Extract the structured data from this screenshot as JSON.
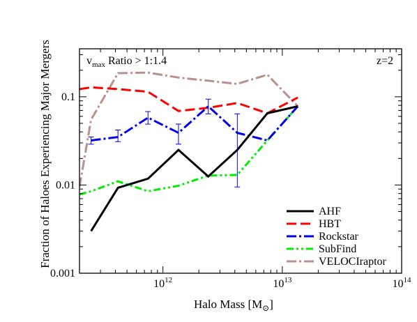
{
  "chart_data": {
    "type": "line",
    "xlabel": "Halo Mass [M",
    "xlabel_sub": "⊙",
    "xlabel_close": "]",
    "ylabel": "Fraction of Haloes Experiencing Major Mergers",
    "xscale": "log",
    "yscale": "log",
    "xlim": [
      200000000000.0,
      100000000000000.0
    ],
    "ylim": [
      0.001,
      0.35
    ],
    "x_ticks": [
      {
        "value": 1000000000000.0,
        "base": "10",
        "exp": "12"
      },
      {
        "value": 10000000000000.0,
        "base": "10",
        "exp": "13"
      },
      {
        "value": 100000000000000.0,
        "base": "10",
        "exp": "14"
      }
    ],
    "y_ticks": [
      {
        "value": 0.001,
        "label": "0.001"
      },
      {
        "value": 0.01,
        "label": "0.01"
      },
      {
        "value": 0.1,
        "label": "0.1"
      }
    ],
    "annotation_left": {
      "v": "v",
      "sub": "max",
      "text": " Ratio > 1:1.4"
    },
    "annotation_right": "z=2",
    "legend_position": "bottom-right",
    "series": [
      {
        "name": "AHF",
        "color": "#000000",
        "dash": "none",
        "width": 3,
        "x": [
          250000000000.0,
          420000000000.0,
          750000000000.0,
          1350000000000.0,
          2400000000000.0,
          4200000000000.0,
          7500000000000.0,
          13500000000000.0
        ],
        "y": [
          0.003,
          0.0093,
          0.0118,
          0.025,
          0.0125,
          0.025,
          0.065,
          0.078
        ]
      },
      {
        "name": "HBT",
        "color": "#ff0000",
        "dash": "14,6",
        "width": 3,
        "x": [
          200000000000.0,
          250000000000.0,
          420000000000.0,
          750000000000.0,
          1350000000000.0,
          2400000000000.0,
          4200000000000.0,
          7500000000000.0,
          13500000000000.0
        ],
        "y": [
          0.122,
          0.128,
          0.122,
          0.114,
          0.069,
          0.075,
          0.085,
          0.065,
          0.098
        ]
      },
      {
        "name": "Rockstar",
        "color": "#0000ee",
        "dash": "14,4,3,4",
        "width": 3,
        "x": [
          250000000000.0,
          420000000000.0,
          750000000000.0,
          1350000000000.0,
          2400000000000.0,
          4200000000000.0,
          7500000000000.0,
          13500000000000.0
        ],
        "y": [
          0.032,
          0.035,
          0.058,
          0.039,
          0.078,
          0.039,
          0.032,
          0.078
        ],
        "yerr_low": [
          0.029,
          0.031,
          0.049,
          0.029,
          0.064,
          0.0095,
          null,
          null
        ],
        "yerr_high": [
          0.035,
          0.042,
          0.068,
          0.049,
          0.094,
          0.064,
          null,
          null
        ]
      },
      {
        "name": "SubFind",
        "color": "#00ee00",
        "dash": "10,4,3,4,3,4",
        "width": 3,
        "x": [
          200000000000.0,
          250000000000.0,
          420000000000.0,
          750000000000.0,
          1350000000000.0,
          2400000000000.0,
          4200000000000.0,
          7500000000000.0,
          13500000000000.0
        ],
        "y": [
          0.0078,
          0.0085,
          0.011,
          0.0085,
          0.0098,
          0.0128,
          0.013,
          0.032,
          0.078
        ]
      },
      {
        "name": "VELOCIraptor",
        "color": "#bc8f8f",
        "dash": "14,4,3,4",
        "width": 3,
        "x": [
          200000000000.0,
          250000000000.0,
          420000000000.0,
          750000000000.0,
          1350000000000.0,
          2400000000000.0,
          4200000000000.0,
          7500000000000.0,
          13500000000000.0
        ],
        "y": [
          0.0095,
          0.055,
          0.185,
          0.188,
          0.165,
          0.152,
          0.14,
          0.178,
          0.078
        ]
      }
    ]
  }
}
